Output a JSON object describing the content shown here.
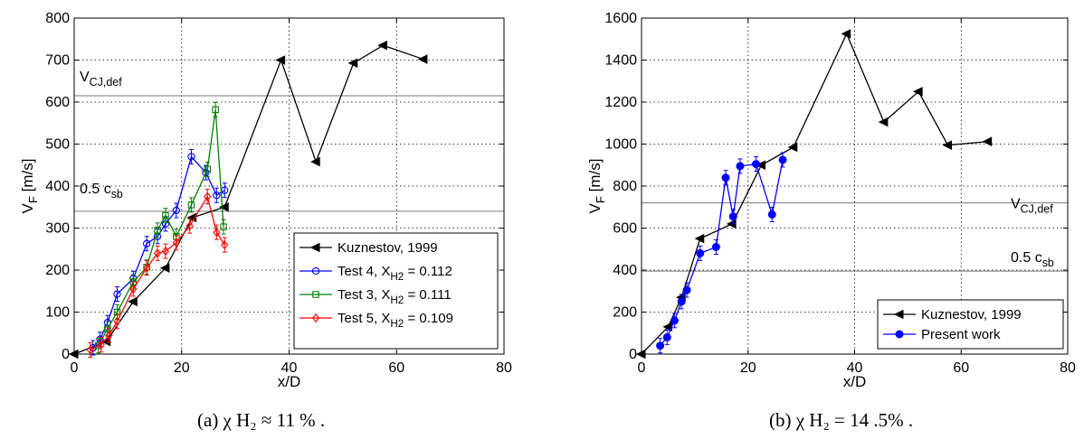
{
  "chart_data": [
    {
      "type": "line",
      "xlabel": "x/D",
      "ylabel": "V_F [m/s]",
      "xlim": [
        0,
        80
      ],
      "ylim": [
        0,
        800
      ],
      "xticks": [
        0,
        20,
        40,
        60,
        80
      ],
      "yticks": [
        0,
        100,
        200,
        300,
        400,
        500,
        600,
        700,
        800
      ],
      "grid": true,
      "legend": "bottom-right",
      "caption": "(a) χ H₂ ≈ 11 % .",
      "hlines": [
        {
          "y": 615,
          "label": "V_CJ,def"
        },
        {
          "y": 340,
          "label": "0.5 c_sb"
        }
      ],
      "series": [
        {
          "name": "Kuznestov, 1999",
          "color": "#000000",
          "marker": "triangle-left",
          "x": [
            0,
            6,
            11,
            17,
            22,
            28,
            38.5,
            45,
            52,
            57.5,
            65
          ],
          "y": [
            0,
            30,
            125,
            205,
            325,
            350,
            700,
            458,
            693,
            735,
            702
          ]
        },
        {
          "name": "Test 4, X_H2 = 0.112",
          "color": "#0000ff",
          "marker": "circle",
          "errorbars": true,
          "x": [
            3.5,
            4.8,
            6.2,
            8,
            11,
            13.5,
            15.5,
            17,
            19,
            21.8,
            24.5,
            26.5,
            28
          ],
          "y": [
            15,
            35,
            75,
            143,
            180,
            263,
            280,
            310,
            342,
            470,
            432,
            378,
            390
          ]
        },
        {
          "name": "Test 3, X_H2 = 0.111",
          "color": "#008000",
          "marker": "square",
          "errorbars": true,
          "x": [
            4.5,
            6.2,
            8,
            11,
            13.5,
            15.5,
            17,
            19,
            21.8,
            24.8,
            26.3,
            27.8
          ],
          "y": [
            20,
            60,
            100,
            172,
            207,
            295,
            330,
            280,
            355,
            440,
            582,
            303
          ]
        },
        {
          "name": "Test 5, X_H2 = 0.109",
          "color": "#ff0000",
          "marker": "diamond",
          "errorbars": true,
          "x": [
            3,
            5,
            6.5,
            8,
            11,
            13.5,
            15.5,
            17,
            19,
            21.5,
            24.8,
            26.5,
            28
          ],
          "y": [
            10,
            22,
            45,
            78,
            155,
            205,
            240,
            245,
            265,
            305,
            375,
            290,
            260
          ]
        }
      ]
    },
    {
      "type": "line",
      "xlabel": "x/D",
      "ylabel": "V_F [m/s]",
      "xlim": [
        0,
        80
      ],
      "ylim": [
        0,
        1600
      ],
      "xticks": [
        0,
        20,
        40,
        60,
        80
      ],
      "yticks": [
        0,
        200,
        400,
        600,
        800,
        1000,
        1200,
        1400,
        1600
      ],
      "grid": true,
      "legend": "bottom-right",
      "caption": "(b) χ H₂ = 14 .5% .",
      "hlines": [
        {
          "y": 720,
          "label": "V_CJ,def"
        },
        {
          "y": 395,
          "label": "0.5 c_sb"
        }
      ],
      "series": [
        {
          "name": "Kuznestov, 1999",
          "color": "#000000",
          "marker": "triangle-left",
          "x": [
            0,
            5,
            7.5,
            11,
            17,
            22.5,
            28.5,
            38.5,
            45.5,
            52,
            57.5,
            65
          ],
          "y": [
            0,
            130,
            270,
            550,
            620,
            900,
            985,
            1525,
            1105,
            1250,
            995,
            1012
          ]
        },
        {
          "name": "Present work",
          "color": "#0000ff",
          "marker": "filled-circle",
          "errorbars": true,
          "x": [
            3.5,
            4.8,
            6.2,
            7.5,
            8.5,
            11,
            14,
            15.8,
            17.2,
            18.5,
            21.5,
            24.5,
            26.5
          ],
          "y": [
            40,
            80,
            160,
            250,
            305,
            480,
            510,
            840,
            655,
            895,
            905,
            665,
            925
          ]
        }
      ]
    }
  ]
}
